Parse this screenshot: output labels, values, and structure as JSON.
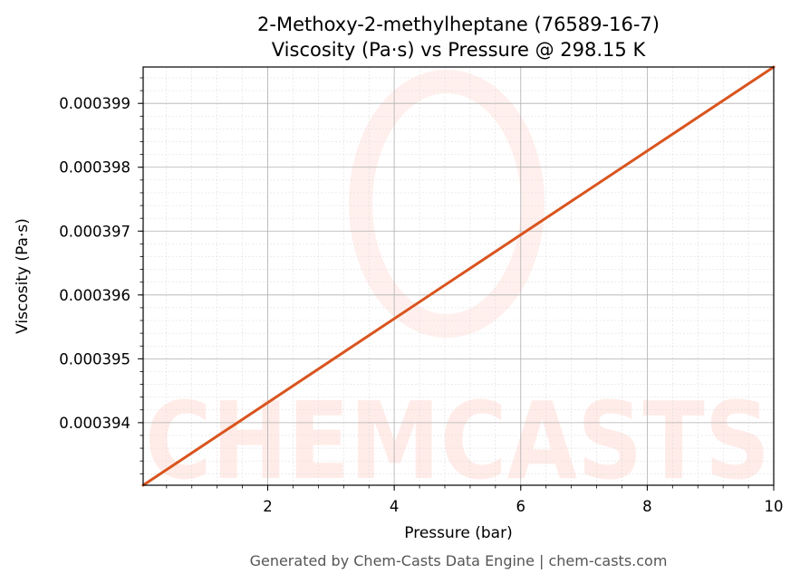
{
  "chart_data": {
    "type": "line",
    "title": "2-Methoxy-2-methylheptane (76589-16-7)",
    "subtitle": "Viscosity (Pa·s) vs Pressure @ 298.15 K",
    "xlabel": "Pressure (bar)",
    "ylabel": "Viscosity (Pa·s)",
    "xlim": [
      0.03,
      10
    ],
    "ylim": [
      0.00039302,
      0.00039957
    ],
    "xticks": [
      2,
      4,
      6,
      8,
      10
    ],
    "yticks": [
      0.000394,
      0.000395,
      0.000396,
      0.000397,
      0.000398,
      0.000399
    ],
    "ytick_labels": [
      "0.000394",
      "0.000395",
      "0.000396",
      "0.000397",
      "0.000398",
      "0.000399"
    ],
    "grid": true,
    "line_color": "#d9541e",
    "series": [
      {
        "x": [
          0.03,
          10
        ],
        "y": [
          0.00039302,
          0.00039957
        ]
      }
    ]
  },
  "watermark": {
    "text": "CHEMCASTS",
    "color": "#ff6a4d"
  },
  "footer": "Generated by Chem-Casts Data Engine | chem-casts.com"
}
